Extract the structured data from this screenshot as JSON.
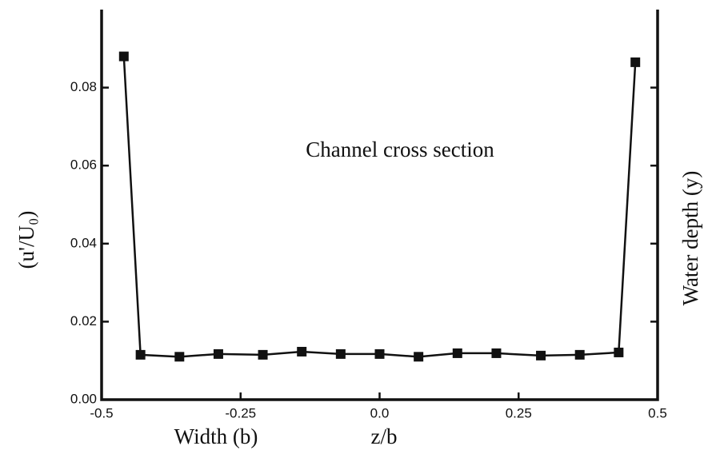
{
  "chart_data": {
    "type": "line",
    "annotation": "Channel cross section",
    "y_label": "(u'/U₀)",
    "y2_label": "Water depth (y)",
    "x_label_left": "Width (b)",
    "x_label": "z/b",
    "x": [
      -0.46,
      -0.43,
      -0.36,
      -0.29,
      -0.21,
      -0.14,
      -0.07,
      0.0,
      0.07,
      0.14,
      0.21,
      0.29,
      0.36,
      0.43,
      0.46
    ],
    "series": [
      {
        "color": "#111111",
        "values": [
          0.088,
          0.0115,
          0.011,
          0.0117,
          0.0115,
          0.0123,
          0.0117,
          0.0117,
          0.011,
          0.0119,
          0.0119,
          0.0113,
          0.0115,
          0.0121,
          0.0865
        ]
      }
    ],
    "xlim": [
      -0.5,
      0.5
    ],
    "xticks": [
      -0.5,
      -0.25,
      {
        "value": 0,
        "label": "0.0"
      },
      0.25,
      0.5
    ],
    "ylim": [
      0,
      0.1
    ],
    "yticks": [
      {
        "value": 0,
        "label": "0.00"
      },
      {
        "value": 0.02,
        "label": "0.02"
      },
      {
        "value": 0.04,
        "label": "0.04"
      },
      {
        "value": 0.06,
        "label": "0.06"
      },
      {
        "value": 0.08,
        "label": "0.08"
      }
    ]
  }
}
